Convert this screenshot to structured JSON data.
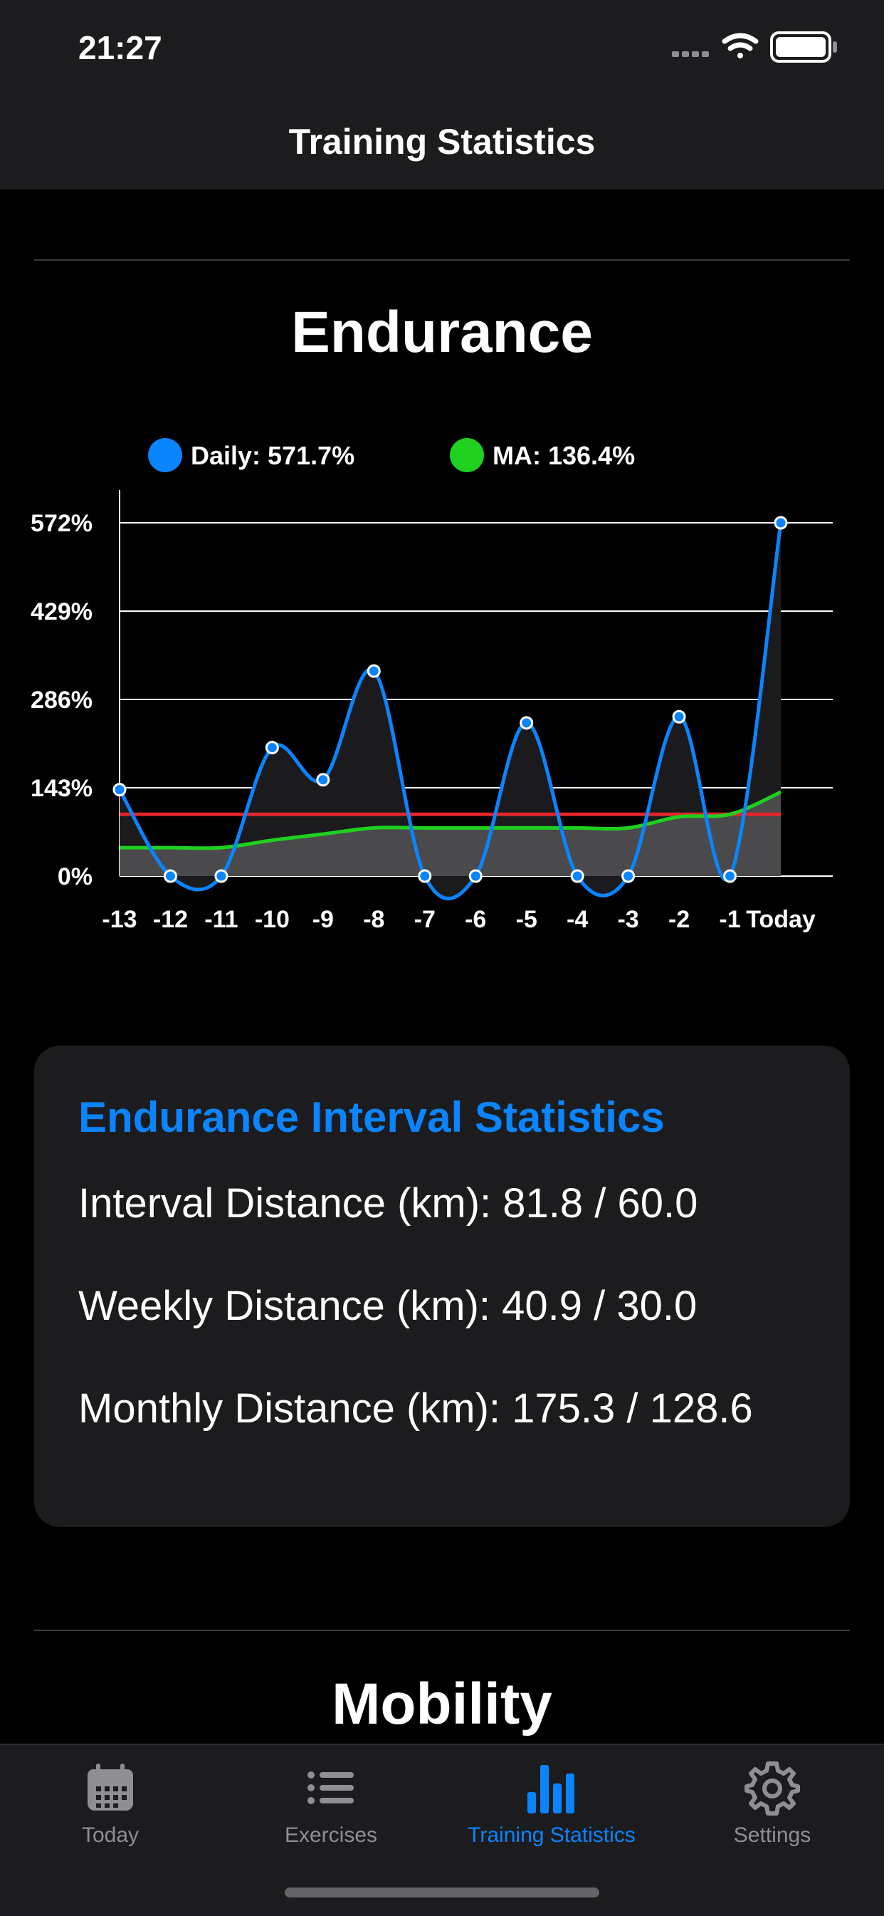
{
  "status_bar": {
    "time": "21:27"
  },
  "nav": {
    "title": "Training Statistics"
  },
  "sections": [
    {
      "title": "Endurance"
    },
    {
      "title": "Mobility"
    }
  ],
  "chart": {
    "legend": [
      {
        "label": "Daily: 571.7%",
        "color": "#0a84ff"
      },
      {
        "label": "MA: 136.4%",
        "color": "#1fd01f"
      }
    ]
  },
  "chart_data": {
    "type": "line",
    "title": "Endurance",
    "x": [
      "-13",
      "-12",
      "-11",
      "-10",
      "-9",
      "-8",
      "-7",
      "-6",
      "-5",
      "-4",
      "-3",
      "-2",
      "-1",
      "Today"
    ],
    "yticks": [
      "0%",
      "143%",
      "286%",
      "429%",
      "572%"
    ],
    "ylim": [
      0,
      572
    ],
    "series": [
      {
        "name": "Daily",
        "color": "#0a84ff",
        "values": [
          140,
          0,
          0,
          208,
          156,
          332,
          0,
          0,
          248,
          0,
          0,
          258,
          0,
          572
        ]
      },
      {
        "name": "MA",
        "color": "#1fd01f",
        "values": [
          46,
          46,
          46,
          58,
          68,
          78,
          78,
          78,
          78,
          78,
          78,
          96,
          100,
          136
        ]
      }
    ],
    "reference_line": {
      "value": 100,
      "color": "#e0262b"
    },
    "grid": true
  },
  "card": {
    "title": "Endurance Interval Statistics",
    "stats": [
      "Interval Distance (km): 81.8 / 60.0",
      "Weekly Distance (km): 40.9 / 30.0",
      "Monthly Distance (km): 175.3 / 128.6"
    ]
  },
  "tabs": [
    {
      "label": "Today",
      "icon": "calendar-icon",
      "active": false
    },
    {
      "label": "Exercises",
      "icon": "list-icon",
      "active": false
    },
    {
      "label": "Training Statistics",
      "icon": "bar-chart-icon",
      "active": true
    },
    {
      "label": "Settings",
      "icon": "gear-icon",
      "active": false
    }
  ]
}
